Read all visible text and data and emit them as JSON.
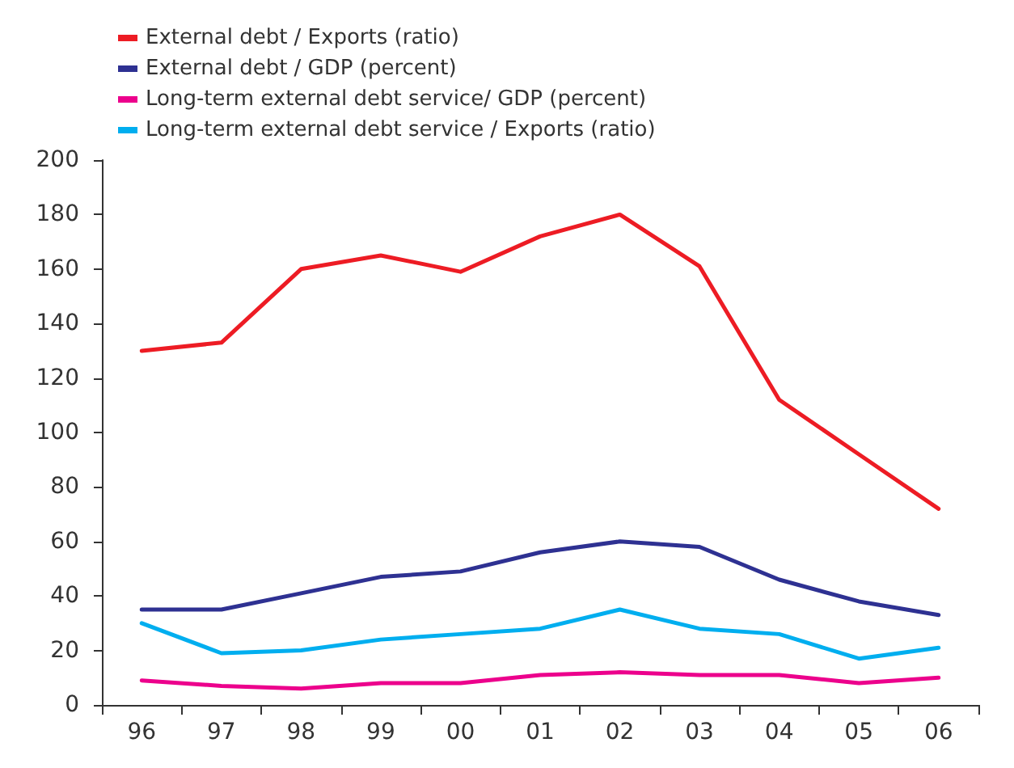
{
  "chart_data": {
    "type": "line",
    "categories": [
      "96",
      "97",
      "98",
      "99",
      "00",
      "01",
      "02",
      "03",
      "04",
      "05",
      "06"
    ],
    "series": [
      {
        "name": "External debt / Exports (ratio)",
        "color": "#ed1c24",
        "values": [
          130,
          133,
          160,
          165,
          159,
          172,
          180,
          161,
          112,
          92,
          72
        ]
      },
      {
        "name": "External debt / GDP (percent)",
        "color": "#2e3192",
        "values": [
          35,
          35,
          41,
          47,
          49,
          56,
          60,
          58,
          46,
          38,
          33
        ]
      },
      {
        "name": "Long-term external debt service/ GDP (percent)",
        "color": "#ec008c",
        "values": [
          9,
          7,
          6,
          8,
          8,
          11,
          12,
          11,
          11,
          8,
          10
        ]
      },
      {
        "name": "Long-term external debt service / Exports (ratio)",
        "color": "#00aeef",
        "values": [
          30,
          19,
          20,
          24,
          26,
          28,
          35,
          28,
          26,
          17,
          21
        ]
      }
    ],
    "ylim": [
      0,
      200
    ],
    "yticks": [
      0,
      20,
      40,
      60,
      80,
      100,
      120,
      140,
      160,
      180,
      200
    ],
    "grid": false,
    "legend": "top left",
    "marker": "none",
    "line_style": "solid"
  }
}
